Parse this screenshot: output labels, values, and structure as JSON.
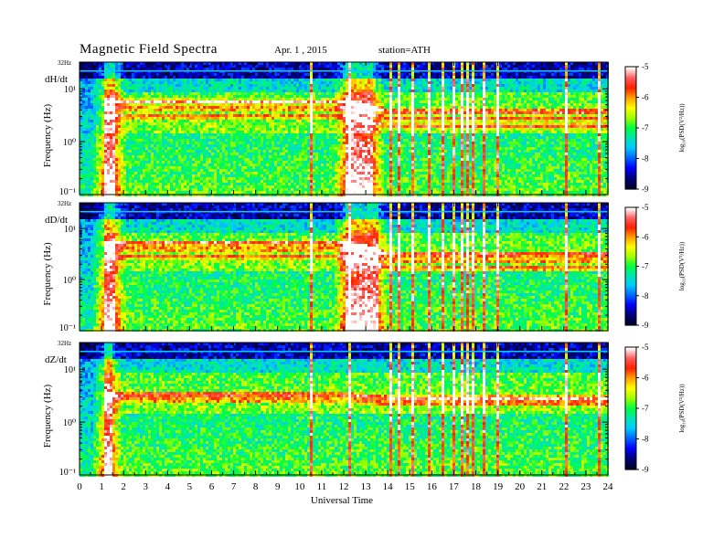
{
  "header": {
    "title": "Magnetic Field Spectra",
    "date": "Apr. 1 , 2015",
    "station": "station=ATH"
  },
  "xaxis": {
    "label": "Universal Time",
    "ticks": [
      "0",
      "1",
      "2",
      "3",
      "4",
      "5",
      "6",
      "7",
      "8",
      "9",
      "10",
      "11",
      "12",
      "13",
      "14",
      "15",
      "16",
      "17",
      "18",
      "19",
      "20",
      "21",
      "22",
      "23",
      "24"
    ]
  },
  "colors": {
    "colormap": [
      "#000030",
      "#00007a",
      "#0000ff",
      "#0066ff",
      "#00c8ff",
      "#00e6b0",
      "#00ff40",
      "#a0ff00",
      "#ffff00",
      "#ffa000",
      "#ff2000",
      "#ff6060",
      "#ffffff"
    ]
  },
  "chart_data": [
    {
      "type": "heatmap",
      "panel_label": "dH/dt",
      "ylabel": "Frequency (Hz)",
      "y_top_label": "32Hz",
      "yticks": [
        "10¹",
        "10⁰",
        "10⁻¹"
      ],
      "y_scale": "log",
      "ylim": [
        0.1,
        32
      ],
      "xlim": [
        0,
        24
      ],
      "colorbar": {
        "label": "log₁₀(PSD(V²/Hz))",
        "ticks": [
          "-5",
          "-6",
          "-7",
          "-8",
          "-9"
        ],
        "range": [
          -9,
          -5
        ]
      },
      "features": {
        "bands_hz": [
          6.0,
          4.5,
          3.2
        ],
        "band_shift_hours": [
          12,
          14
        ],
        "band_shift_factor": 0.65,
        "active_intervals_hours": [
          [
            1.0,
            1.6
          ],
          [
            12.0,
            13.3
          ]
        ],
        "spike_hours": [
          10.5,
          12.2,
          14.1,
          14.5,
          15.1,
          15.8,
          16.4,
          16.9,
          17.3,
          17.6,
          17.8,
          18.0,
          18.3,
          18.9,
          22.1,
          23.6
        ]
      }
    },
    {
      "type": "heatmap",
      "panel_label": "dD/dt",
      "ylabel": "Frequency (Hz)",
      "y_top_label": "32Hz",
      "yticks": [
        "10¹",
        "10⁰",
        "10⁻¹"
      ],
      "y_scale": "log",
      "ylim": [
        0.1,
        32
      ],
      "xlim": [
        0,
        24
      ],
      "colorbar": {
        "label": "log₁₀(PSD(V²/Hz))",
        "ticks": [
          "-5",
          "-6",
          "-7",
          "-8",
          "-9"
        ],
        "range": [
          -9,
          -5
        ]
      },
      "features": {
        "bands_hz": [
          5.5,
          4.2,
          3.0
        ],
        "band_shift_hours": [
          12,
          14
        ],
        "band_shift_factor": 0.6,
        "active_intervals_hours": [
          [
            1.0,
            1.6
          ],
          [
            12.0,
            13.5
          ]
        ],
        "spike_hours": [
          10.5,
          12.2,
          14.1,
          14.5,
          15.1,
          15.8,
          16.4,
          16.9,
          17.3,
          17.6,
          17.8,
          18.0,
          18.3,
          18.9,
          22.1,
          23.6
        ]
      }
    },
    {
      "type": "heatmap",
      "panel_label": "dZ/dt",
      "ylabel": "Frequency (Hz)",
      "y_top_label": "32Hz",
      "yticks": [
        "10¹",
        "10⁰",
        "10⁻¹"
      ],
      "y_scale": "log",
      "ylim": [
        0.1,
        32
      ],
      "xlim": [
        0,
        24
      ],
      "colorbar": {
        "label": "log₁₀(PSD(V²/Hz))",
        "ticks": [
          "-5",
          "-6",
          "-7",
          "-8",
          "-9"
        ],
        "range": [
          -9,
          -5
        ]
      },
      "features": {
        "bands_hz": [
          3.5,
          2.8
        ],
        "band_shift_hours": [
          12,
          14
        ],
        "band_shift_factor": 0.85,
        "active_intervals_hours": [
          [
            1.0,
            1.4
          ]
        ],
        "spike_hours": [
          10.5,
          12.2,
          14.1,
          14.5,
          15.1,
          15.8,
          16.4,
          16.9,
          17.3,
          17.6,
          17.8,
          18.0,
          18.3,
          18.9,
          22.1,
          23.6
        ]
      }
    }
  ]
}
